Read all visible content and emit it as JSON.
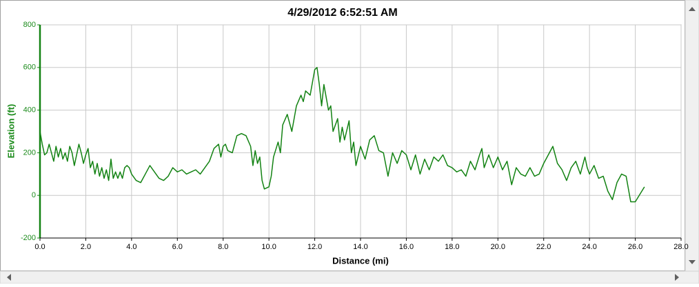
{
  "chart_data": {
    "type": "line",
    "title": "4/29/2012 6:52:51 AM",
    "x_label": "Distance (mi)",
    "y_label": "Elevation (ft)",
    "color": "#128212",
    "grid": true,
    "xlim": [
      0,
      28
    ],
    "ylim": [
      -200,
      800
    ],
    "xticks": [
      {
        "value": 0,
        "label": "0.0"
      },
      {
        "value": 2,
        "label": "2.0"
      },
      {
        "value": 4,
        "label": "4.0"
      },
      {
        "value": 6,
        "label": "6.0"
      },
      {
        "value": 8,
        "label": "8.0"
      },
      {
        "value": 10,
        "label": "10.0"
      },
      {
        "value": 12,
        "label": "12.0"
      },
      {
        "value": 14,
        "label": "14.0"
      },
      {
        "value": 16,
        "label": "16.0"
      },
      {
        "value": 18,
        "label": "18.0"
      },
      {
        "value": 20,
        "label": "20.0"
      },
      {
        "value": 22,
        "label": "22.0"
      },
      {
        "value": 24,
        "label": "24.0"
      },
      {
        "value": 26,
        "label": "26.0"
      },
      {
        "value": 28,
        "label": "28.0"
      }
    ],
    "yticks": [
      -200,
      0,
      200,
      400,
      600,
      800
    ],
    "x": [
      0.0,
      0.1,
      0.2,
      0.3,
      0.4,
      0.5,
      0.6,
      0.7,
      0.8,
      0.9,
      1.0,
      1.1,
      1.2,
      1.3,
      1.4,
      1.5,
      1.6,
      1.7,
      1.8,
      1.9,
      2.0,
      2.1,
      2.2,
      2.3,
      2.4,
      2.5,
      2.6,
      2.7,
      2.8,
      2.9,
      3.0,
      3.1,
      3.2,
      3.3,
      3.4,
      3.5,
      3.6,
      3.7,
      3.8,
      3.9,
      4.0,
      4.2,
      4.4,
      4.6,
      4.8,
      5.0,
      5.2,
      5.4,
      5.6,
      5.8,
      6.0,
      6.2,
      6.4,
      6.6,
      6.8,
      7.0,
      7.2,
      7.4,
      7.6,
      7.8,
      7.9,
      8.0,
      8.1,
      8.2,
      8.4,
      8.6,
      8.8,
      9.0,
      9.2,
      9.3,
      9.4,
      9.5,
      9.6,
      9.7,
      9.8,
      10.0,
      10.1,
      10.2,
      10.4,
      10.5,
      10.6,
      10.8,
      11.0,
      11.2,
      11.4,
      11.5,
      11.6,
      11.8,
      12.0,
      12.1,
      12.2,
      12.3,
      12.4,
      12.5,
      12.6,
      12.7,
      12.8,
      13.0,
      13.1,
      13.2,
      13.3,
      13.5,
      13.6,
      13.7,
      13.8,
      14.0,
      14.2,
      14.4,
      14.6,
      14.8,
      15.0,
      15.2,
      15.4,
      15.6,
      15.8,
      16.0,
      16.2,
      16.4,
      16.6,
      16.8,
      17.0,
      17.2,
      17.4,
      17.6,
      17.8,
      18.0,
      18.2,
      18.4,
      18.6,
      18.8,
      19.0,
      19.2,
      19.3,
      19.4,
      19.6,
      19.8,
      20.0,
      20.2,
      20.4,
      20.6,
      20.8,
      21.0,
      21.2,
      21.4,
      21.6,
      21.8,
      22.0,
      22.2,
      22.4,
      22.6,
      22.8,
      23.0,
      23.2,
      23.4,
      23.6,
      23.8,
      23.9,
      24.0,
      24.2,
      24.4,
      24.6,
      24.8,
      25.0,
      25.2,
      25.4,
      25.6,
      25.8,
      26.0,
      26.4
    ],
    "values": [
      300,
      240,
      190,
      200,
      240,
      200,
      160,
      230,
      180,
      220,
      170,
      200,
      160,
      230,
      200,
      140,
      190,
      240,
      200,
      150,
      190,
      220,
      130,
      160,
      100,
      150,
      90,
      130,
      80,
      120,
      70,
      170,
      80,
      110,
      80,
      110,
      80,
      130,
      140,
      130,
      100,
      70,
      60,
      100,
      140,
      110,
      80,
      70,
      90,
      130,
      110,
      120,
      100,
      110,
      120,
      100,
      130,
      160,
      220,
      240,
      180,
      230,
      240,
      210,
      200,
      280,
      290,
      280,
      230,
      140,
      210,
      150,
      180,
      70,
      30,
      40,
      90,
      180,
      250,
      200,
      330,
      380,
      300,
      420,
      470,
      440,
      490,
      470,
      590,
      600,
      520,
      420,
      520,
      460,
      400,
      420,
      300,
      360,
      250,
      320,
      260,
      350,
      200,
      250,
      140,
      230,
      170,
      260,
      280,
      210,
      200,
      90,
      200,
      150,
      210,
      190,
      120,
      190,
      100,
      170,
      120,
      180,
      160,
      190,
      140,
      130,
      110,
      120,
      90,
      160,
      120,
      190,
      220,
      130,
      190,
      130,
      180,
      120,
      160,
      50,
      130,
      100,
      90,
      130,
      90,
      100,
      150,
      190,
      230,
      150,
      120,
      70,
      130,
      160,
      100,
      180,
      130,
      100,
      140,
      80,
      90,
      20,
      -20,
      60,
      100,
      90,
      -30,
      -30,
      40
    ]
  }
}
